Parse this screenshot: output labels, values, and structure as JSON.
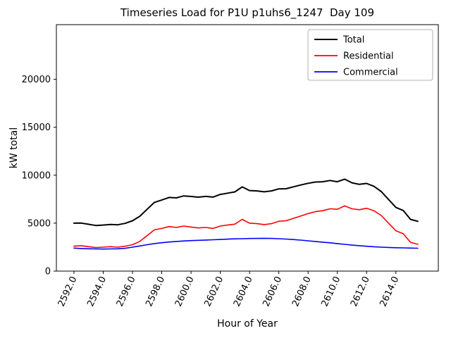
{
  "chart_data": {
    "type": "line",
    "title": "Timeseries Load for P1U p1uhs6_1247  Day 109",
    "xlabel": "Hour of Year",
    "ylabel": "kW total",
    "xlim": [
      2590.8,
      2616.9
    ],
    "ylim": [
      0,
      25700
    ],
    "grid": false,
    "legend_position": "upper right",
    "x_ticks": [
      2592,
      2594,
      2596,
      2598,
      2600,
      2602,
      2604,
      2606,
      2608,
      2610,
      2612,
      2614
    ],
    "x_tick_labels": [
      "2592.0",
      "2594.0",
      "2596.0",
      "2598.0",
      "2600.0",
      "2602.0",
      "2604.0",
      "2606.0",
      "2608.0",
      "2610.0",
      "2612.0",
      "2614.0"
    ],
    "y_ticks": [
      0,
      5000,
      10000,
      15000,
      20000
    ],
    "y_tick_labels": [
      "0",
      "5000",
      "10000",
      "15000",
      "20000"
    ],
    "x": [
      2592.0,
      2592.5,
      2593.0,
      2593.5,
      2594.0,
      2594.5,
      2595.0,
      2595.5,
      2596.0,
      2596.5,
      2597.0,
      2597.5,
      2598.0,
      2598.5,
      2599.0,
      2599.5,
      2600.0,
      2600.5,
      2601.0,
      2601.5,
      2602.0,
      2602.5,
      2603.0,
      2603.5,
      2604.0,
      2604.5,
      2605.0,
      2605.5,
      2606.0,
      2606.5,
      2607.0,
      2607.5,
      2608.0,
      2608.5,
      2609.0,
      2609.5,
      2610.0,
      2610.5,
      2611.0,
      2611.5,
      2612.0,
      2612.5,
      2613.0,
      2613.5,
      2614.0,
      2614.5,
      2615.0,
      2615.5
    ],
    "series": [
      {
        "name": "Total",
        "color": "#000000",
        "values": [
          5000,
          5010,
          4880,
          4760,
          4800,
          4860,
          4830,
          4980,
          5250,
          5720,
          6450,
          7170,
          7410,
          7680,
          7640,
          7840,
          7780,
          7710,
          7790,
          7720,
          8000,
          8130,
          8260,
          8780,
          8400,
          8360,
          8270,
          8360,
          8580,
          8590,
          8790,
          8980,
          9160,
          9290,
          9320,
          9450,
          9320,
          9590,
          9210,
          9050,
          9140,
          8840,
          8300,
          7470,
          6640,
          6320,
          5400,
          5190
        ]
      },
      {
        "name": "Residential",
        "color": "#ff0000",
        "values": [
          2600,
          2650,
          2550,
          2450,
          2500,
          2550,
          2500,
          2600,
          2750,
          3100,
          3700,
          4300,
          4450,
          4650,
          4550,
          4700,
          4600,
          4500,
          4550,
          4450,
          4700,
          4800,
          4900,
          5400,
          5000,
          4950,
          4850,
          4950,
          5200,
          5250,
          5500,
          5750,
          6000,
          6200,
          6300,
          6500,
          6450,
          6800,
          6500,
          6400,
          6550,
          6300,
          5800,
          5000,
          4200,
          3900,
          3000,
          2800
        ]
      },
      {
        "name": "Commercial",
        "color": "#0000ff",
        "values": [
          2400,
          2360,
          2330,
          2310,
          2300,
          2310,
          2330,
          2380,
          2500,
          2620,
          2750,
          2870,
          2960,
          3030,
          3090,
          3140,
          3180,
          3210,
          3240,
          3270,
          3300,
          3330,
          3360,
          3380,
          3400,
          3410,
          3420,
          3410,
          3380,
          3340,
          3290,
          3230,
          3160,
          3090,
          3020,
          2950,
          2870,
          2790,
          2710,
          2650,
          2590,
          2540,
          2500,
          2470,
          2440,
          2420,
          2400,
          2390
        ]
      }
    ]
  }
}
